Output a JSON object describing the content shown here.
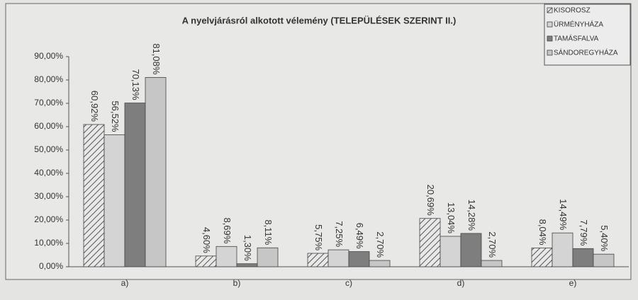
{
  "chart_data": {
    "type": "bar",
    "title": "A nyelvjárásról alkotott vélemény (TELEPÜLÉSEK SZERINT II.)",
    "categories": [
      "a)",
      "b)",
      "c)",
      "d)",
      "e)"
    ],
    "series": [
      {
        "name": "KISOROSZ",
        "color": "#9a9a9a",
        "pattern": "diagonal-hatch",
        "values": [
          60.92,
          4.6,
          5.75,
          20.69,
          8.04
        ],
        "value_labels": [
          "60,92%",
          "4,60%",
          "5,75%",
          "20,69%",
          "8,04%"
        ]
      },
      {
        "name": "ÜRMÉNYHÁZA",
        "color": "#d4d4d4",
        "values": [
          56.52,
          8.69,
          7.25,
          13.04,
          14.49
        ],
        "value_labels": [
          "56,52%",
          "8,69%",
          "7,25%",
          "13,04%",
          "14,49%"
        ]
      },
      {
        "name": "TAMÁSFALVA",
        "color": "#7e7e7e",
        "values": [
          70.13,
          1.3,
          6.49,
          14.28,
          7.79
        ],
        "value_labels": [
          "70,13%",
          "1,30%",
          "6,49%",
          "14,28%",
          "7,79%"
        ]
      },
      {
        "name": "SÁNDOREGYHÁZA",
        "color": "#c6c6c6",
        "values": [
          81.08,
          8.11,
          2.7,
          2.7,
          5.4
        ],
        "value_labels": [
          "81,08%",
          "8,11%",
          "2,70%",
          "2,70%",
          "5,40%"
        ]
      }
    ],
    "ylim": [
      0,
      90
    ],
    "yticks": [
      {
        "value": 0,
        "label": "0,00%"
      },
      {
        "value": 10,
        "label": "10,00%"
      },
      {
        "value": 20,
        "label": "20,00%"
      },
      {
        "value": 30,
        "label": "30,00%"
      },
      {
        "value": 40,
        "label": "40,00%"
      },
      {
        "value": 50,
        "label": "50,00%"
      },
      {
        "value": 60,
        "label": "60,00%"
      },
      {
        "value": 70,
        "label": "70,00%"
      },
      {
        "value": 80,
        "label": "80,00%"
      },
      {
        "value": 90,
        "label": "90,00%"
      }
    ],
    "grid": false,
    "legend": "top-right"
  }
}
